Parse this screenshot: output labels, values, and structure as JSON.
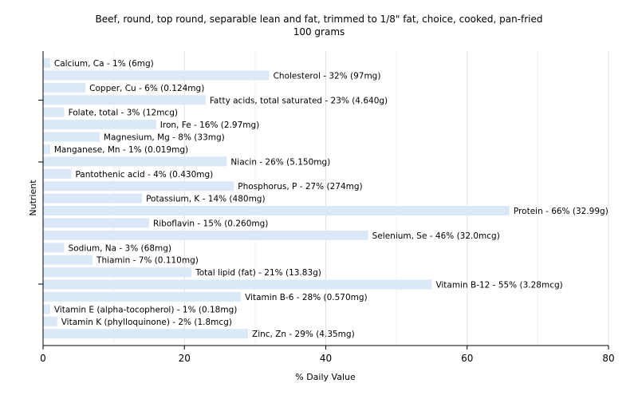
{
  "chart_data": {
    "type": "bar",
    "orientation": "horizontal",
    "title": "Beef, round, top round, separable lean and fat, trimmed to 1/8\" fat, choice, cooked, pan-fried",
    "subtitle": "100 grams",
    "xlabel": "% Daily Value",
    "ylabel": "Nutrient",
    "xlim": [
      0,
      80
    ],
    "xticks": [
      0,
      20,
      40,
      60,
      80
    ],
    "grid": true,
    "bar_color": "#dbe8f8",
    "categories": [
      "Calcium, Ca",
      "Cholesterol",
      "Copper, Cu",
      "Fatty acids, total saturated",
      "Folate, total",
      "Iron, Fe",
      "Magnesium, Mg",
      "Manganese, Mn",
      "Niacin",
      "Pantothenic acid",
      "Phosphorus, P",
      "Potassium, K",
      "Protein",
      "Riboflavin",
      "Selenium, Se",
      "Sodium, Na",
      "Thiamin",
      "Total lipid (fat)",
      "Vitamin B-12",
      "Vitamin B-6",
      "Vitamin E (alpha-tocopherol)",
      "Vitamin K (phylloquinone)",
      "Zinc, Zn"
    ],
    "values": [
      1,
      32,
      6,
      23,
      3,
      16,
      8,
      1,
      26,
      4,
      27,
      14,
      66,
      15,
      46,
      3,
      7,
      21,
      55,
      28,
      1,
      2,
      29
    ],
    "labels": [
      "Calcium, Ca - 1% (6mg)",
      "Cholesterol - 32% (97mg)",
      "Copper, Cu - 6% (0.124mg)",
      "Fatty acids, total saturated - 23% (4.640g)",
      "Folate, total - 3% (12mcg)",
      "Iron, Fe - 16% (2.97mg)",
      "Magnesium, Mg - 8% (33mg)",
      "Manganese, Mn - 1% (0.019mg)",
      "Niacin - 26% (5.150mg)",
      "Pantothenic acid - 4% (0.430mg)",
      "Phosphorus, P - 27% (274mg)",
      "Potassium, K - 14% (480mg)",
      "Protein - 66% (32.99g)",
      "Riboflavin - 15% (0.260mg)",
      "Selenium, Se - 46% (32.0mcg)",
      "Sodium, Na - 3% (68mg)",
      "Thiamin - 7% (0.110mg)",
      "Total lipid (fat) - 21% (13.83g)",
      "Vitamin B-12 - 55% (3.28mcg)",
      "Vitamin B-6 - 28% (0.570mg)",
      "Vitamin E (alpha-tocopherol) - 1% (0.18mg)",
      "Vitamin K (phylloquinone) - 2% (1.8mcg)",
      "Zinc, Zn - 29% (4.35mg)"
    ]
  }
}
